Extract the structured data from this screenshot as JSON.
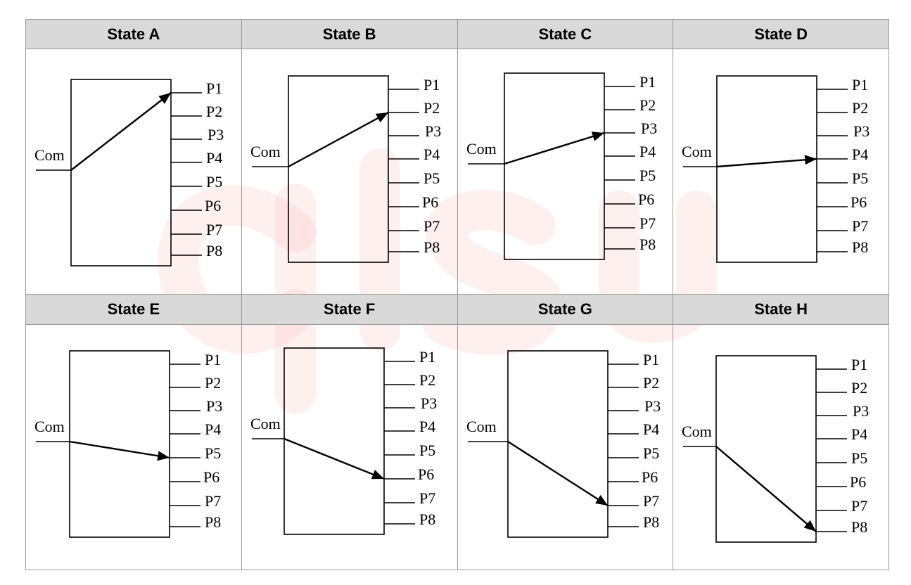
{
  "states": [
    {
      "name": "State A",
      "active_port": 1
    },
    {
      "name": "State B",
      "active_port": 2
    },
    {
      "name": "State C",
      "active_port": 3
    },
    {
      "name": "State D",
      "active_port": 4
    },
    {
      "name": "State E",
      "active_port": 5
    },
    {
      "name": "State F",
      "active_port": 6
    },
    {
      "name": "State G",
      "active_port": 7
    },
    {
      "name": "State H",
      "active_port": 8
    }
  ],
  "common_label": "Com",
  "port_labels": [
    "P1",
    "P2",
    "P3",
    "P4",
    "P5",
    "P6",
    "P7",
    "P8"
  ],
  "watermark_text": "glsun",
  "colors": {
    "header_bg": "#d9d9d9",
    "border": "#9a9a9a",
    "watermark": "#ff0000"
  }
}
